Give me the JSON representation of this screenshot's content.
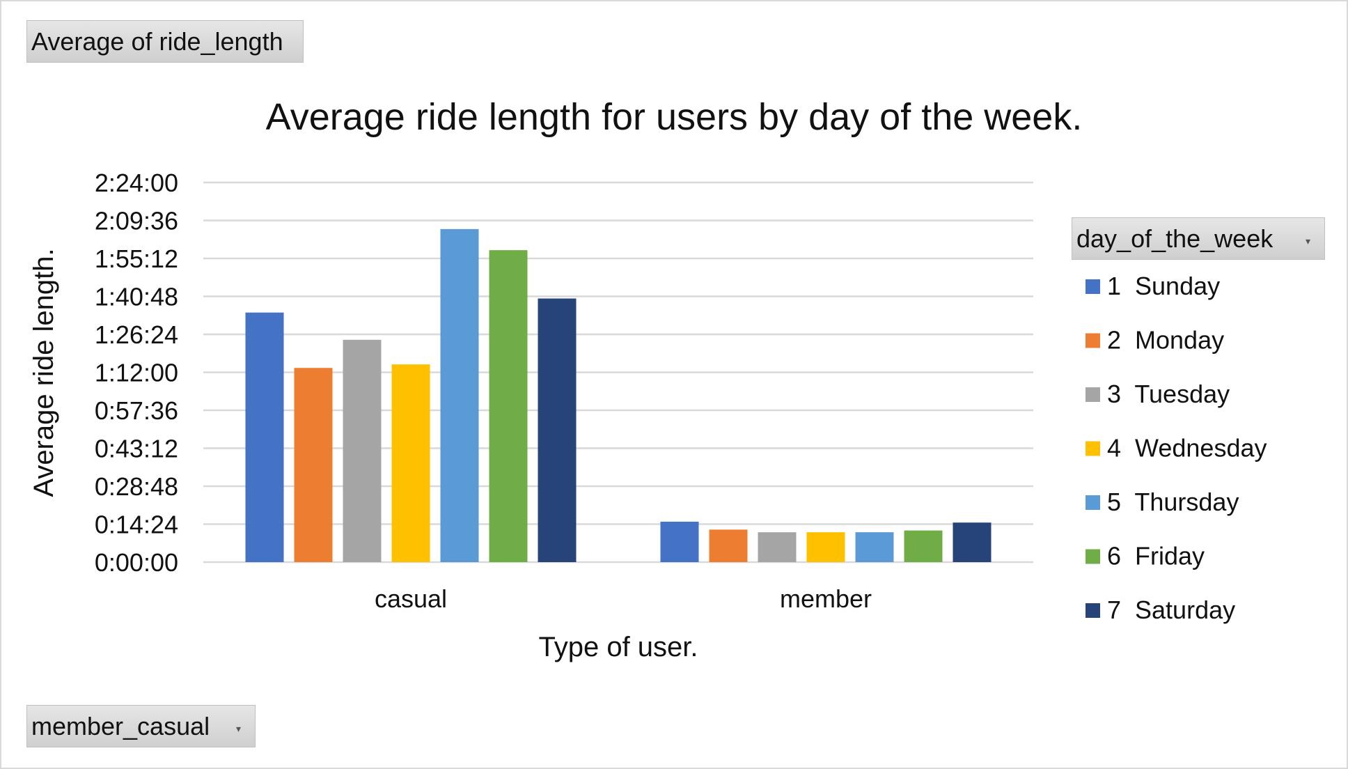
{
  "value_field_button": "Average of ride_length",
  "axis_field_button": "member_casual",
  "legend_field_button": "day_of_the_week",
  "dropdown_arrow_glyph": "▾",
  "chart_data": {
    "type": "bar",
    "title": "Average ride length for users by day of the week.",
    "xlabel": "Type of user.",
    "ylabel": "Average ride length.",
    "categories": [
      "casual",
      "member"
    ],
    "ylim_seconds": [
      0,
      8640
    ],
    "y_ticks": [
      "0:00:00",
      "0:14:24",
      "0:28:48",
      "0:43:12",
      "0:57:36",
      "1:12:00",
      "1:26:24",
      "1:40:48",
      "1:55:12",
      "2:09:36",
      "2:24:00"
    ],
    "grid": true,
    "legend_position": "right",
    "legend_title": "day_of_the_week",
    "series": [
      {
        "name": "1  Sunday",
        "color": "#4472c4",
        "values_seconds": [
          5680,
          920
        ]
      },
      {
        "name": "2  Monday",
        "color": "#ed7d31",
        "values_seconds": [
          4420,
          740
        ]
      },
      {
        "name": "3  Tuesday",
        "color": "#a5a5a5",
        "values_seconds": [
          5060,
          680
        ]
      },
      {
        "name": "4  Wednesday",
        "color": "#ffc000",
        "values_seconds": [
          4500,
          680
        ]
      },
      {
        "name": "5  Thursday",
        "color": "#5b9bd5",
        "values_seconds": [
          7580,
          680
        ]
      },
      {
        "name": "6  Friday",
        "color": "#70ad47",
        "values_seconds": [
          7100,
          720
        ]
      },
      {
        "name": "7  Saturday",
        "color": "#264478",
        "values_seconds": [
          6000,
          900
        ]
      }
    ]
  }
}
